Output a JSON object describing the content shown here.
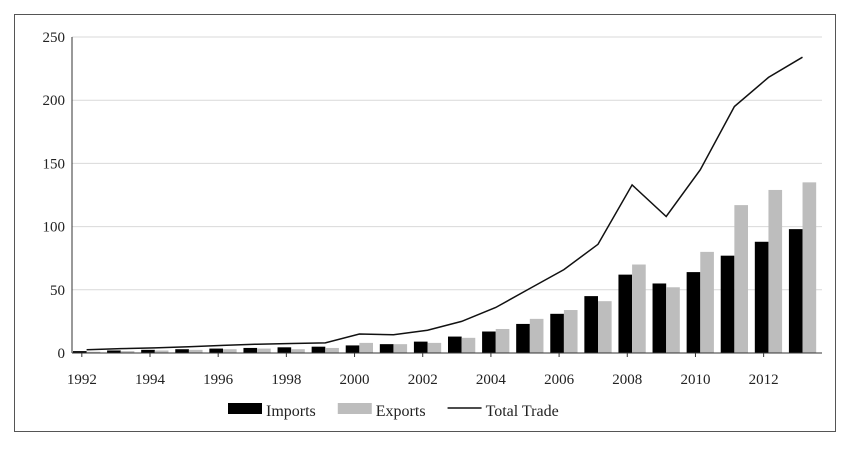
{
  "chart_data": {
    "type": "bar",
    "x": [
      1992,
      1993,
      1994,
      1995,
      1996,
      1997,
      1998,
      1999,
      2000,
      2001,
      2002,
      2003,
      2004,
      2005,
      2006,
      2007,
      2008,
      2009,
      2010,
      2011,
      2012,
      2013
    ],
    "x_tick_labels": [
      "1992",
      "1994",
      "1996",
      "1998",
      "2000",
      "2002",
      "2004",
      "2006",
      "2008",
      "2010",
      "2012"
    ],
    "y_tick_labels": [
      "0",
      "50",
      "100",
      "150",
      "200",
      "250"
    ],
    "ylim": [
      0,
      250
    ],
    "grid": true,
    "legend_placement": "bottom",
    "title": "",
    "xlabel": "",
    "ylabel": "",
    "series": [
      {
        "name": "Imports",
        "kind": "bar",
        "color": "#000000",
        "values": [
          1.5,
          2,
          2.5,
          3,
          3.5,
          4,
          4.5,
          5,
          6,
          7,
          9,
          13,
          17,
          23,
          31,
          45,
          62,
          55,
          64,
          77,
          88,
          98
        ]
      },
      {
        "name": "Exports",
        "kind": "bar",
        "color": "#bdbdbd",
        "values": [
          1,
          1.5,
          2,
          2.5,
          3,
          3.5,
          3,
          4,
          8,
          7,
          8,
          12,
          19,
          27,
          34,
          41,
          70,
          52,
          80,
          117,
          129,
          135
        ]
      },
      {
        "name": "Total Trade",
        "kind": "line",
        "color": "#111111",
        "values": [
          2.5,
          3.5,
          4,
          5,
          6,
          7,
          7.5,
          8,
          15,
          14.5,
          18,
          25,
          36,
          51,
          66,
          86,
          133,
          108,
          145,
          195,
          218,
          234
        ]
      }
    ]
  }
}
